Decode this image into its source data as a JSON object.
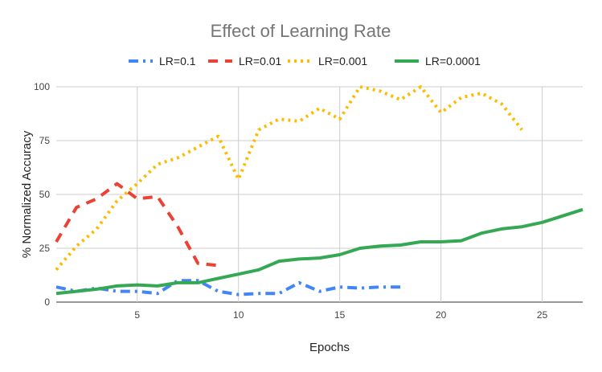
{
  "chart_data": {
    "type": "line",
    "title": "Effect of Learning Rate",
    "xlabel": "Epochs",
    "ylabel": "% Normalized Accuracy",
    "xlim": [
      1,
      27
    ],
    "ylim": [
      0,
      100
    ],
    "x_ticks": [
      "5",
      "10",
      "15",
      "20",
      "25"
    ],
    "y_ticks": [
      "0",
      "25",
      "50",
      "75",
      "100"
    ],
    "grid": true,
    "legend_position": "top",
    "series": [
      {
        "name": "LR=0.1",
        "color": "#4285f4",
        "dash": "dash-dot",
        "x": [
          1,
          2,
          3,
          4,
          5,
          6,
          7,
          8,
          9,
          10,
          11,
          12,
          13,
          14,
          15,
          16,
          17,
          18
        ],
        "y": [
          7,
          5,
          6.5,
          5,
          5,
          4,
          10,
          10,
          5,
          3.5,
          4,
          4,
          9,
          5,
          7,
          6.5,
          7,
          7
        ]
      },
      {
        "name": "LR=0.01",
        "color": "#ea4335",
        "dash": "dash",
        "x": [
          1,
          2,
          3,
          4,
          5,
          6,
          7,
          8,
          9
        ],
        "y": [
          28,
          44,
          48,
          55,
          48,
          49,
          35,
          18,
          17
        ]
      },
      {
        "name": "LR=0.001",
        "color": "#fbbc04",
        "dash": "dot",
        "x": [
          1,
          2,
          3,
          4,
          5,
          6,
          7,
          8,
          9,
          10,
          11,
          12,
          13,
          14,
          15,
          16,
          17,
          18,
          19,
          20,
          21,
          22,
          23,
          24
        ],
        "y": [
          15,
          26,
          34,
          47,
          55,
          64,
          67,
          72,
          77,
          57,
          80,
          85,
          84,
          90,
          85,
          100,
          98,
          94,
          100,
          88,
          95,
          97,
          92,
          80
        ]
      },
      {
        "name": "LR=0.0001",
        "color": "#34a853",
        "dash": "solid",
        "x": [
          1,
          2,
          3,
          4,
          5,
          6,
          7,
          8,
          9,
          10,
          11,
          12,
          13,
          14,
          15,
          16,
          17,
          18,
          19,
          20,
          21,
          22,
          23,
          24,
          25,
          26,
          27
        ],
        "y": [
          4,
          5,
          6,
          7.5,
          8,
          7.5,
          9,
          9,
          11,
          13,
          15,
          19,
          20,
          20.5,
          22,
          25,
          26,
          26.5,
          28,
          28,
          28.5,
          32,
          34,
          35,
          37,
          40,
          43
        ]
      }
    ]
  }
}
